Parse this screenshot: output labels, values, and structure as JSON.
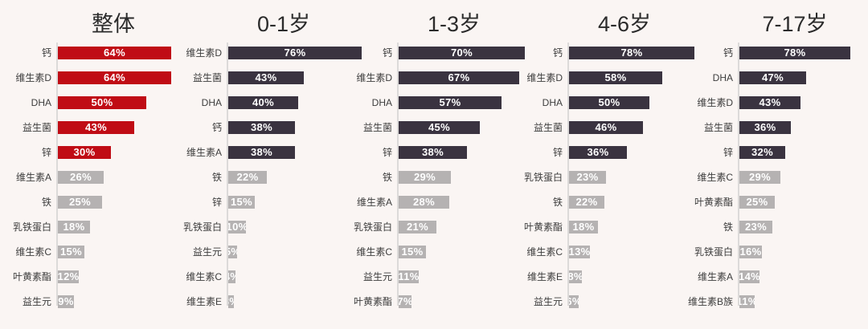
{
  "background": "#faf5f3",
  "style": {
    "emphasis_red": "#c00c15",
    "emphasis_dark": "#3a3340",
    "muted_gray": "#b5b2b2",
    "axis_line": "#dcdad9",
    "category_label_color": "#3d3d3d",
    "value_text_color": "#ffffff",
    "title_color": "#2b2b2b"
  },
  "chart_data": {
    "type": "bar",
    "orientation": "horizontal",
    "value_unit": "%",
    "legend": "none",
    "grid": false,
    "panels": [
      {
        "title": "整体",
        "bar_color": "#c00c15",
        "muted_color": "#b5b2b2",
        "rows": [
          {
            "label": "钙",
            "value": 64,
            "emphasis": true
          },
          {
            "label": "维生素D",
            "value": 64,
            "emphasis": true
          },
          {
            "label": "DHA",
            "value": 50,
            "emphasis": true
          },
          {
            "label": "益生菌",
            "value": 43,
            "emphasis": true
          },
          {
            "label": "锌",
            "value": 30,
            "emphasis": true
          },
          {
            "label": "维生素A",
            "value": 26,
            "emphasis": false
          },
          {
            "label": "铁",
            "value": 25,
            "emphasis": false
          },
          {
            "label": "乳铁蛋白",
            "value": 18,
            "emphasis": false
          },
          {
            "label": "维生素C",
            "value": 15,
            "emphasis": false
          },
          {
            "label": "叶黄素酯",
            "value": 12,
            "emphasis": false
          },
          {
            "label": "益生元",
            "value": 9,
            "emphasis": false
          }
        ]
      },
      {
        "title": "0-1岁",
        "bar_color": "#3a3340",
        "muted_color": "#b5b2b2",
        "rows": [
          {
            "label": "维生素D",
            "value": 76,
            "emphasis": true
          },
          {
            "label": "益生菌",
            "value": 43,
            "emphasis": true
          },
          {
            "label": "DHA",
            "value": 40,
            "emphasis": true
          },
          {
            "label": "钙",
            "value": 38,
            "emphasis": true
          },
          {
            "label": "维生素A",
            "value": 38,
            "emphasis": true
          },
          {
            "label": "铁",
            "value": 22,
            "emphasis": false
          },
          {
            "label": "锌",
            "value": 15,
            "emphasis": false
          },
          {
            "label": "乳铁蛋白",
            "value": 10,
            "emphasis": false
          },
          {
            "label": "益生元",
            "value": 5,
            "emphasis": false
          },
          {
            "label": "维生素C",
            "value": 4,
            "emphasis": false
          },
          {
            "label": "维生素E",
            "value": 3,
            "emphasis": false
          }
        ]
      },
      {
        "title": "1-3岁",
        "bar_color": "#3a3340",
        "muted_color": "#b5b2b2",
        "rows": [
          {
            "label": "钙",
            "value": 70,
            "emphasis": true
          },
          {
            "label": "维生素D",
            "value": 67,
            "emphasis": true
          },
          {
            "label": "DHA",
            "value": 57,
            "emphasis": true
          },
          {
            "label": "益生菌",
            "value": 45,
            "emphasis": true
          },
          {
            "label": "锌",
            "value": 38,
            "emphasis": true
          },
          {
            "label": "铁",
            "value": 29,
            "emphasis": false
          },
          {
            "label": "维生素A",
            "value": 28,
            "emphasis": false
          },
          {
            "label": "乳铁蛋白",
            "value": 21,
            "emphasis": false
          },
          {
            "label": "维生素C",
            "value": 15,
            "emphasis": false
          },
          {
            "label": "益生元",
            "value": 11,
            "emphasis": false
          },
          {
            "label": "叶黄素酯",
            "value": 7,
            "emphasis": false
          }
        ]
      },
      {
        "title": "4-6岁",
        "bar_color": "#3a3340",
        "muted_color": "#b5b2b2",
        "rows": [
          {
            "label": "钙",
            "value": 78,
            "emphasis": true
          },
          {
            "label": "维生素D",
            "value": 58,
            "emphasis": true
          },
          {
            "label": "DHA",
            "value": 50,
            "emphasis": true
          },
          {
            "label": "益生菌",
            "value": 46,
            "emphasis": true
          },
          {
            "label": "锌",
            "value": 36,
            "emphasis": true
          },
          {
            "label": "乳铁蛋白",
            "value": 23,
            "emphasis": false
          },
          {
            "label": "铁",
            "value": 22,
            "emphasis": false
          },
          {
            "label": "叶黄素酯",
            "value": 18,
            "emphasis": false
          },
          {
            "label": "维生素C",
            "value": 13,
            "emphasis": false
          },
          {
            "label": "维生素E",
            "value": 8,
            "emphasis": false
          },
          {
            "label": "益生元",
            "value": 6,
            "emphasis": false
          }
        ]
      },
      {
        "title": "7-17岁",
        "bar_color": "#3a3340",
        "muted_color": "#b5b2b2",
        "rows": [
          {
            "label": "钙",
            "value": 78,
            "emphasis": true
          },
          {
            "label": "DHA",
            "value": 47,
            "emphasis": true
          },
          {
            "label": "维生素D",
            "value": 43,
            "emphasis": true
          },
          {
            "label": "益生菌",
            "value": 36,
            "emphasis": true
          },
          {
            "label": "锌",
            "value": 32,
            "emphasis": true
          },
          {
            "label": "维生素C",
            "value": 29,
            "emphasis": false
          },
          {
            "label": "叶黄素酯",
            "value": 25,
            "emphasis": false
          },
          {
            "label": "铁",
            "value": 23,
            "emphasis": false
          },
          {
            "label": "乳铁蛋白",
            "value": 16,
            "emphasis": false
          },
          {
            "label": "维生素A",
            "value": 14,
            "emphasis": false
          },
          {
            "label": "维生素B族",
            "value": 11,
            "emphasis": false
          }
        ]
      }
    ]
  }
}
